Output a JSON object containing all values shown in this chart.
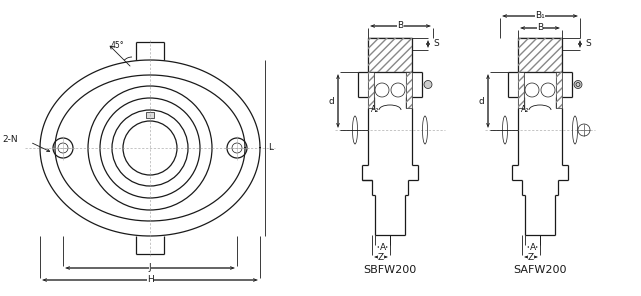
{
  "bg_color": "#ffffff",
  "line_color": "#1a1a1a",
  "label_SBFW200": "SBFW200",
  "label_SAFW200": "SAFW200",
  "angle_label": "45°",
  "label_2N": "2-N",
  "label_L": "L",
  "label_J": "J",
  "label_H": "H",
  "label_B": "B",
  "label_B1": "B₁",
  "label_S": "S",
  "label_A": "A",
  "label_Z": "Z",
  "label_d": "d",
  "label_A2": "A₂"
}
